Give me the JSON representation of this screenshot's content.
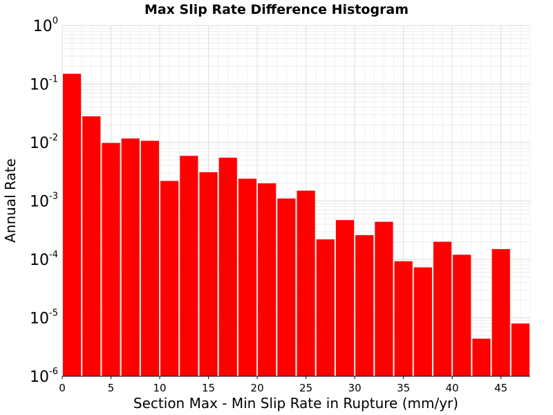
{
  "chart_data": {
    "type": "bar",
    "title": "Max Slip Rate Difference Histogram",
    "xlabel": "Section Max - Min Slip Rate in Rupture (mm/yr)",
    "ylabel": "Annual Rate",
    "y_scale": "log",
    "xlim": [
      0,
      48
    ],
    "ylim": [
      1e-06,
      1
    ],
    "bin_width": 2,
    "x_ticks": [
      0,
      5,
      10,
      15,
      20,
      25,
      30,
      35,
      40,
      45
    ],
    "y_ticks": [
      {
        "value": 1,
        "base": "10",
        "exp": "0"
      },
      {
        "value": 0.1,
        "base": "10",
        "exp": "-1"
      },
      {
        "value": 0.01,
        "base": "10",
        "exp": "-2"
      },
      {
        "value": 0.001,
        "base": "10",
        "exp": "-3"
      },
      {
        "value": 0.0001,
        "base": "10",
        "exp": "-4"
      },
      {
        "value": 1e-05,
        "base": "10",
        "exp": "-5"
      },
      {
        "value": 1e-06,
        "base": "10",
        "exp": "-6"
      }
    ],
    "grid": true,
    "bar_color": "#ff0000",
    "bins": [
      {
        "x": 1,
        "value": 0.15
      },
      {
        "x": 3,
        "value": 0.028
      },
      {
        "x": 5,
        "value": 0.0098
      },
      {
        "x": 7,
        "value": 0.0117
      },
      {
        "x": 9,
        "value": 0.0107
      },
      {
        "x": 11,
        "value": 0.0022
      },
      {
        "x": 13,
        "value": 0.0059
      },
      {
        "x": 15,
        "value": 0.0031
      },
      {
        "x": 17,
        "value": 0.0055
      },
      {
        "x": 19,
        "value": 0.0024
      },
      {
        "x": 21,
        "value": 0.002
      },
      {
        "x": 23,
        "value": 0.0011
      },
      {
        "x": 25,
        "value": 0.0015
      },
      {
        "x": 27,
        "value": 0.00022
      },
      {
        "x": 29,
        "value": 0.00047
      },
      {
        "x": 31,
        "value": 0.00026
      },
      {
        "x": 33,
        "value": 0.00044
      },
      {
        "x": 35,
        "value": 9.3e-05
      },
      {
        "x": 37,
        "value": 7.3e-05
      },
      {
        "x": 39,
        "value": 0.0002
      },
      {
        "x": 41,
        "value": 0.00012
      },
      {
        "x": 43,
        "value": 4.4e-06
      },
      {
        "x": 45,
        "value": 0.00015
      },
      {
        "x": 47,
        "value": 8e-06
      }
    ]
  }
}
